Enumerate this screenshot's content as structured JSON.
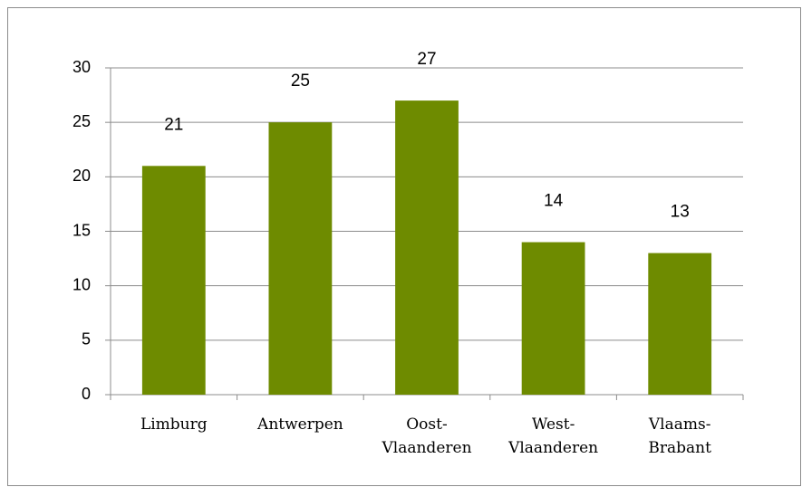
{
  "chart_data": {
    "type": "bar",
    "categories": [
      "Limburg",
      "Antwerpen",
      "Oost-Vlaanderen",
      "West-Vlaanderen",
      "Vlaams-Brabant"
    ],
    "values": [
      21,
      25,
      27,
      14,
      13
    ],
    "color": "#6e8b00",
    "ylim": [
      0,
      30
    ],
    "yticks": [
      0,
      5,
      10,
      15,
      20,
      25,
      30
    ],
    "grid": true
  }
}
